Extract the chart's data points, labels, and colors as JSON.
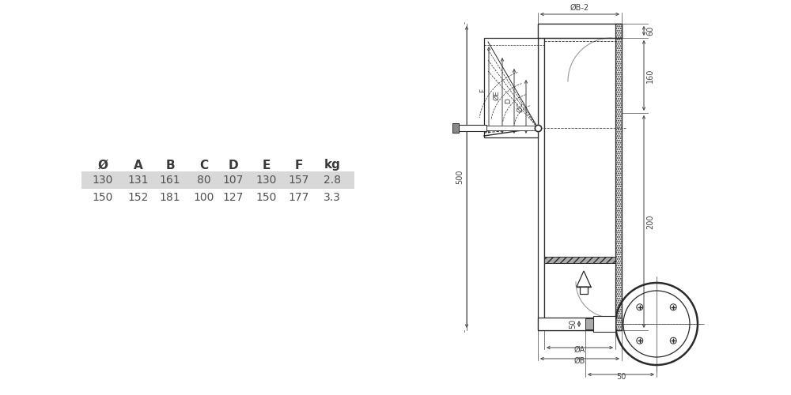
{
  "table_headers": [
    "Ø",
    "A",
    "B",
    "C",
    "D",
    "E",
    "F",
    "kg"
  ],
  "table_rows": [
    [
      "130",
      "131",
      "161",
      "80",
      "107",
      "130",
      "157",
      "2.8"
    ],
    [
      "150",
      "152",
      "181",
      "100",
      "127",
      "150",
      "177",
      "3.3"
    ]
  ],
  "row1_bg": "#d8d8d8",
  "row2_bg": "#ffffff",
  "header_color": "#3a3a3a",
  "text_color": "#505050",
  "line_color": "#2a2a2a",
  "dim_color": "#444444",
  "bg_color": "#ffffff"
}
